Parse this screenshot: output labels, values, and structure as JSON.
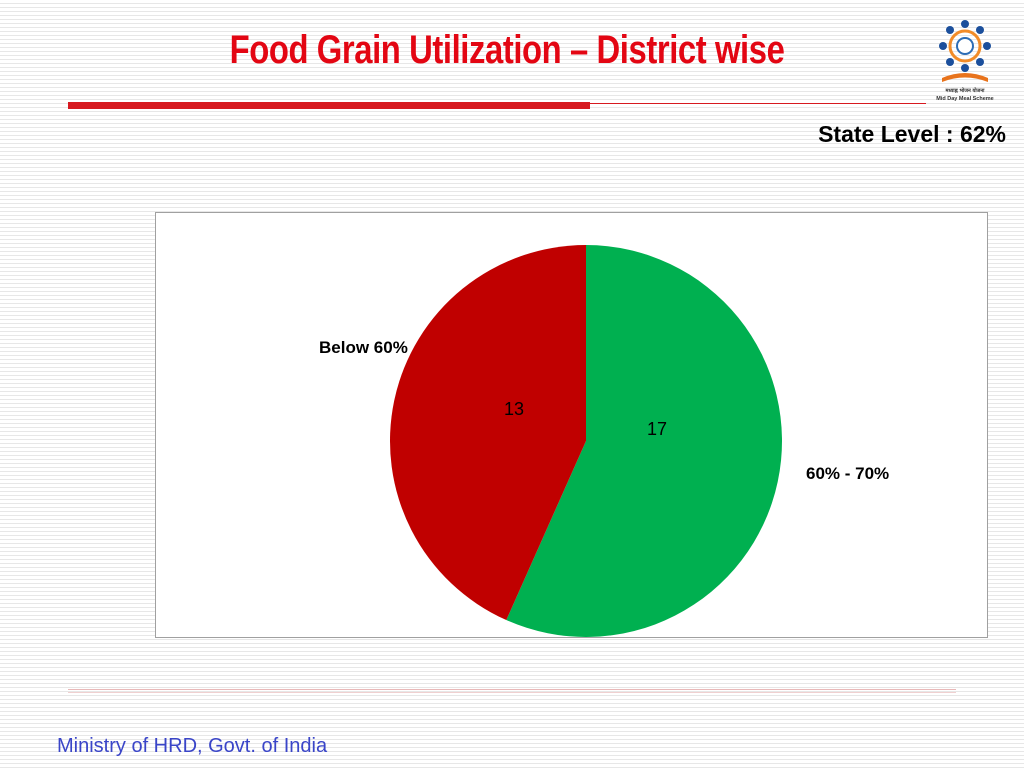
{
  "slide": {
    "title": "Food Grain Utilization – District wise",
    "state_level": "State Level : 62%",
    "footer": "Ministry of HRD, Govt. of India",
    "logo_text": "मध्याह्न भोजन योजना",
    "logo_subtext": "Mid Day Meal Scheme"
  },
  "colors": {
    "title": "#e30613",
    "accent_bar": "#d71920",
    "footer_text": "#3a45c8"
  },
  "chart_data": {
    "type": "pie",
    "categories": [
      "60% - 70%",
      "Below 60%"
    ],
    "values": [
      17,
      13
    ],
    "colors": [
      "#00b050",
      "#c00000"
    ],
    "data_labels": [
      "17",
      "13"
    ],
    "start_angle_deg": 0,
    "direction": "clockwise",
    "legend": "none"
  }
}
